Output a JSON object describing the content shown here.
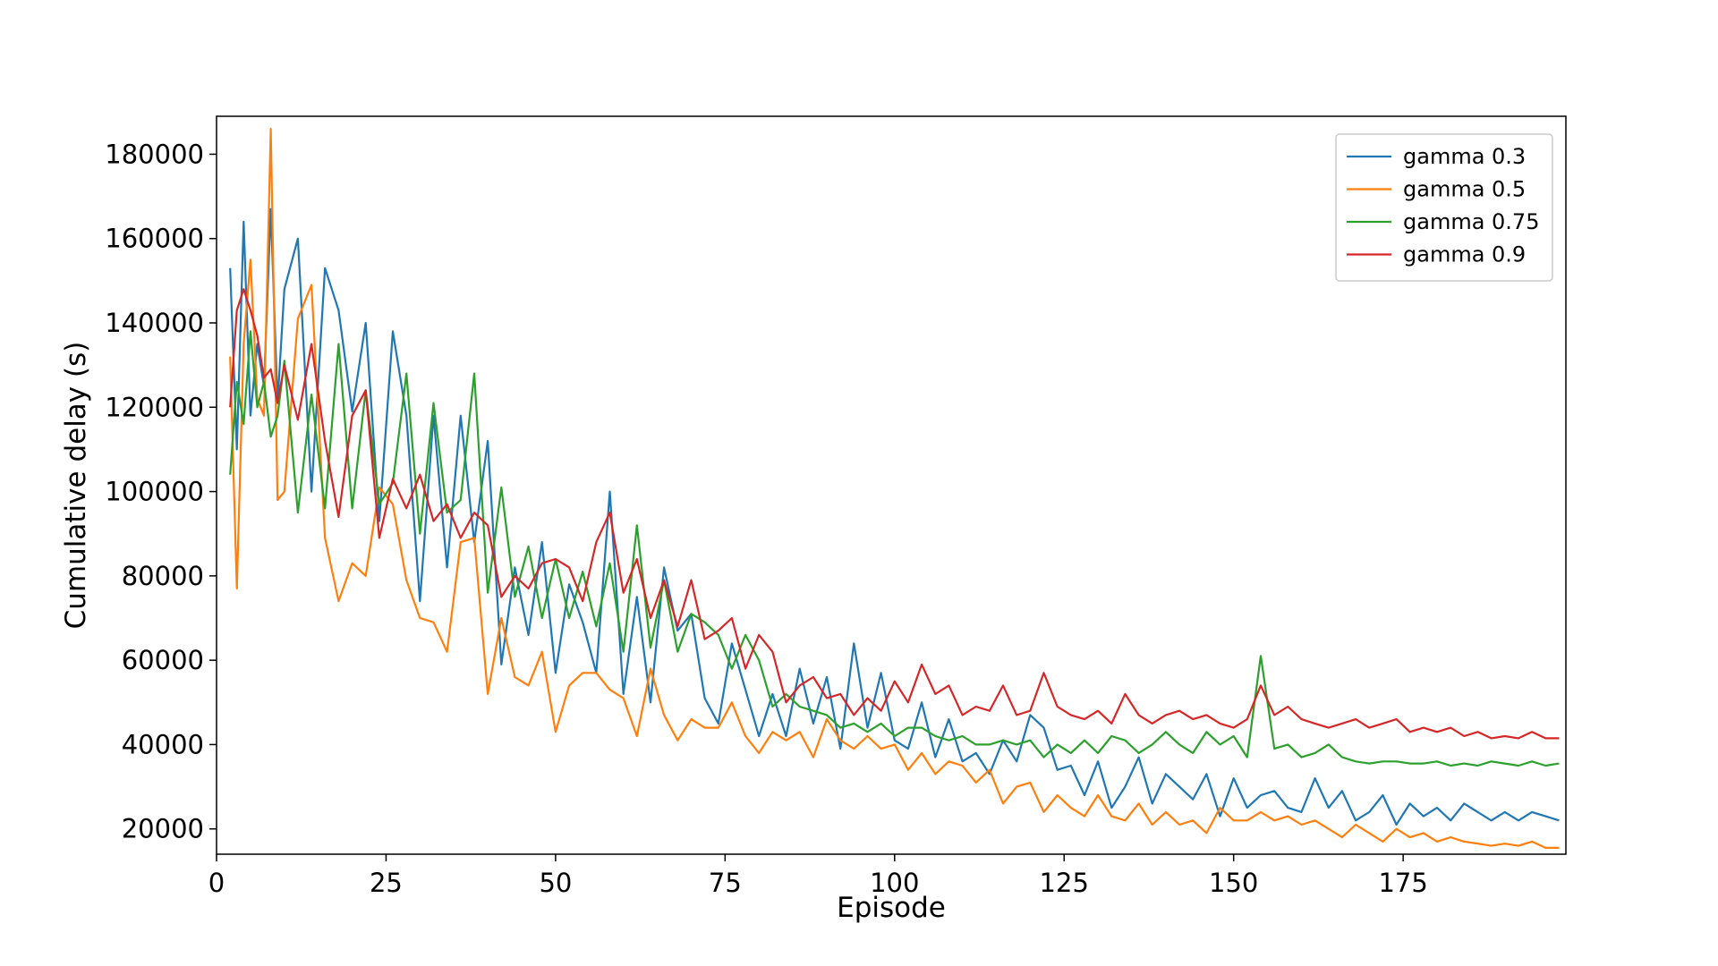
{
  "chart_data": {
    "type": "line",
    "title": "",
    "xlabel": "Episode",
    "ylabel": "Cumulative delay (s)",
    "xlim": [
      0,
      199
    ],
    "ylim": [
      14000,
      189000
    ],
    "xticks": [
      0,
      25,
      50,
      75,
      100,
      125,
      150,
      175
    ],
    "xtick_labels": [
      "0",
      "25",
      "50",
      "75",
      "100",
      "125",
      "150",
      "175"
    ],
    "yticks": [
      20000,
      40000,
      60000,
      80000,
      100000,
      120000,
      140000,
      160000,
      180000
    ],
    "ytick_labels": [
      "20000",
      "40000",
      "60000",
      "80000",
      "100000",
      "120000",
      "140000",
      "160000",
      "180000"
    ],
    "grid": false,
    "legend_position": "top-right",
    "x": [
      2,
      3,
      4,
      5,
      6,
      7,
      8,
      9,
      10,
      12,
      14,
      16,
      18,
      20,
      22,
      24,
      26,
      28,
      30,
      32,
      34,
      36,
      38,
      40,
      42,
      44,
      46,
      48,
      50,
      52,
      54,
      56,
      58,
      60,
      62,
      64,
      66,
      68,
      70,
      72,
      74,
      76,
      78,
      80,
      82,
      84,
      86,
      88,
      90,
      92,
      94,
      96,
      98,
      100,
      102,
      104,
      106,
      108,
      110,
      112,
      114,
      116,
      118,
      120,
      122,
      124,
      126,
      128,
      130,
      132,
      134,
      136,
      138,
      140,
      142,
      144,
      146,
      148,
      150,
      152,
      154,
      156,
      158,
      160,
      162,
      164,
      166,
      168,
      170,
      172,
      174,
      176,
      178,
      180,
      182,
      184,
      186,
      188,
      190,
      192,
      194,
      196,
      198
    ],
    "series": [
      {
        "name": "gamma 0.3",
        "color": "#1f77b4",
        "values": [
          153000,
          110000,
          164000,
          118000,
          135000,
          125000,
          167000,
          121000,
          148000,
          160000,
          100000,
          153000,
          143000,
          119000,
          140000,
          93000,
          138000,
          118000,
          74000,
          118000,
          82000,
          118000,
          88000,
          112000,
          59000,
          82000,
          66000,
          88000,
          57000,
          78000,
          69000,
          57000,
          100000,
          52000,
          75000,
          50000,
          82000,
          67000,
          71000,
          51000,
          45000,
          64000,
          53000,
          42000,
          52000,
          42000,
          58000,
          45000,
          56000,
          39000,
          64000,
          44000,
          57000,
          41000,
          39000,
          50000,
          37000,
          46000,
          36000,
          38000,
          33000,
          41000,
          36000,
          47000,
          44000,
          34000,
          35000,
          28000,
          36000,
          25000,
          30000,
          37000,
          26000,
          33000,
          30000,
          27000,
          33000,
          23000,
          32000,
          25000,
          28000,
          29000,
          25000,
          24000,
          32000,
          25000,
          29000,
          22000,
          24000,
          28000,
          21000,
          26000,
          23000,
          25000,
          22000,
          26000,
          24000,
          22000,
          24000,
          22000,
          24000,
          23000,
          22000
        ]
      },
      {
        "name": "gamma 0.5",
        "color": "#ff7f0e",
        "values": [
          132000,
          77000,
          135000,
          155000,
          122000,
          118000,
          186000,
          98000,
          100000,
          141000,
          149000,
          89000,
          74000,
          83000,
          80000,
          101000,
          97000,
          79000,
          70000,
          69000,
          62000,
          88000,
          89000,
          52000,
          70000,
          56000,
          54000,
          62000,
          43000,
          54000,
          57000,
          57000,
          53000,
          51000,
          42000,
          58000,
          47000,
          41000,
          46000,
          44000,
          44000,
          50000,
          42000,
          38000,
          43000,
          41000,
          43000,
          37000,
          46000,
          41000,
          39000,
          42000,
          39000,
          40000,
          34000,
          38000,
          33000,
          36000,
          35000,
          31000,
          34000,
          26000,
          30000,
          31000,
          24000,
          28000,
          25000,
          23000,
          28000,
          23000,
          22000,
          26000,
          21000,
          24000,
          21000,
          22000,
          19000,
          25000,
          22000,
          22000,
          24000,
          22000,
          23000,
          21000,
          22000,
          20000,
          18000,
          21000,
          19000,
          17000,
          20000,
          18000,
          19000,
          17000,
          18000,
          17000,
          16500,
          16000,
          16500,
          16000,
          17000,
          15500,
          15500
        ]
      },
      {
        "name": "gamma 0.75",
        "color": "#2ca02c",
        "values": [
          104000,
          126000,
          116000,
          138000,
          120000,
          126000,
          113000,
          118000,
          131000,
          95000,
          123000,
          96000,
          135000,
          96000,
          124000,
          97000,
          102000,
          128000,
          90000,
          121000,
          95000,
          98000,
          128000,
          76000,
          101000,
          75000,
          87000,
          70000,
          84000,
          70000,
          81000,
          68000,
          83000,
          62000,
          92000,
          63000,
          79000,
          62000,
          71000,
          69000,
          66000,
          58000,
          66000,
          60000,
          49000,
          52000,
          49000,
          48000,
          47000,
          44000,
          45000,
          43000,
          45000,
          42000,
          44000,
          44000,
          42000,
          41000,
          42000,
          40000,
          40000,
          41000,
          40000,
          41000,
          37000,
          40000,
          38000,
          41000,
          38000,
          42000,
          41000,
          38000,
          40000,
          43000,
          40000,
          38000,
          43000,
          40000,
          42000,
          37000,
          61000,
          39000,
          40000,
          37000,
          38000,
          40000,
          37000,
          36000,
          35500,
          36000,
          36000,
          35500,
          35500,
          36000,
          35000,
          35500,
          35000,
          36000,
          35500,
          35000,
          36000,
          35000,
          35500
        ]
      },
      {
        "name": "gamma 0.9",
        "color": "#d62728",
        "values": [
          120000,
          143000,
          148000,
          143000,
          137000,
          127000,
          129000,
          121000,
          130000,
          117000,
          135000,
          112000,
          94000,
          118000,
          124000,
          89000,
          103000,
          96000,
          104000,
          93000,
          97000,
          89000,
          95000,
          92000,
          75000,
          80000,
          77000,
          83000,
          84000,
          82000,
          74000,
          88000,
          95000,
          76000,
          84000,
          70000,
          79000,
          68000,
          79000,
          65000,
          67000,
          70000,
          58000,
          66000,
          62000,
          50000,
          54000,
          56000,
          51000,
          52000,
          47000,
          51000,
          48000,
          55000,
          50000,
          59000,
          52000,
          54000,
          47000,
          49000,
          48000,
          54000,
          47000,
          48000,
          57000,
          49000,
          47000,
          46000,
          48000,
          45000,
          52000,
          47000,
          45000,
          47000,
          48000,
          46000,
          47000,
          45000,
          44000,
          46000,
          54000,
          47000,
          49000,
          46000,
          45000,
          44000,
          45000,
          46000,
          44000,
          45000,
          46000,
          43000,
          44000,
          43000,
          44000,
          42000,
          43000,
          41500,
          42000,
          41500,
          43000,
          41500,
          41500
        ]
      }
    ]
  }
}
